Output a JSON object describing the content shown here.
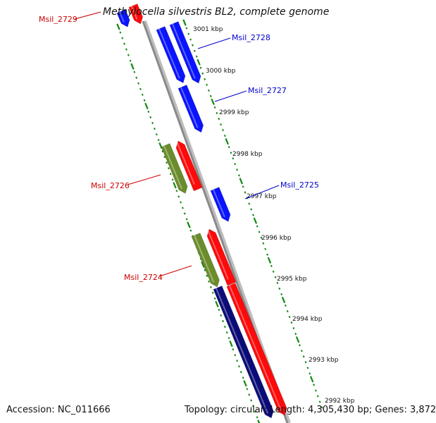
{
  "title": "Methylocella silvestris BL2, complete genome",
  "footer": {
    "accession_label": "Accession:",
    "accession_value": "NC_011666",
    "topology_label": "Topology:",
    "topology_value": "circular",
    "length_label": "Length:",
    "length_value": "4,305,430 bp",
    "genes_label": "Genes:",
    "genes_value": "3,872"
  },
  "colors": {
    "forward_gene": "#0a14ff",
    "reverse_gene": "#ff0a0a",
    "rna_gene": "#6b8c2a",
    "long_forward_gene": "#0c0c78",
    "backbone": "#8a8a8a",
    "tick_track": "#118811",
    "label_red": "#cc0000",
    "label_blue": "#0000cc"
  },
  "scale_ticks": [
    "3001 kbp",
    "3000 kbp",
    "2999 kbp",
    "2998 kbp",
    "2997 kbp",
    "2996 kbp",
    "2995 kbp",
    "2994 kbp",
    "2993 kbp",
    "2992 kbp"
  ],
  "gene_labels": [
    {
      "text": "Msil_2729",
      "color": "red"
    },
    {
      "text": "Msil_2728",
      "color": "blue"
    },
    {
      "text": "Msil_2727",
      "color": "blue"
    },
    {
      "text": "Msil_2726",
      "color": "red"
    },
    {
      "text": "Msil_2725",
      "color": "blue"
    },
    {
      "text": "Msil_2724",
      "color": "red"
    }
  ]
}
